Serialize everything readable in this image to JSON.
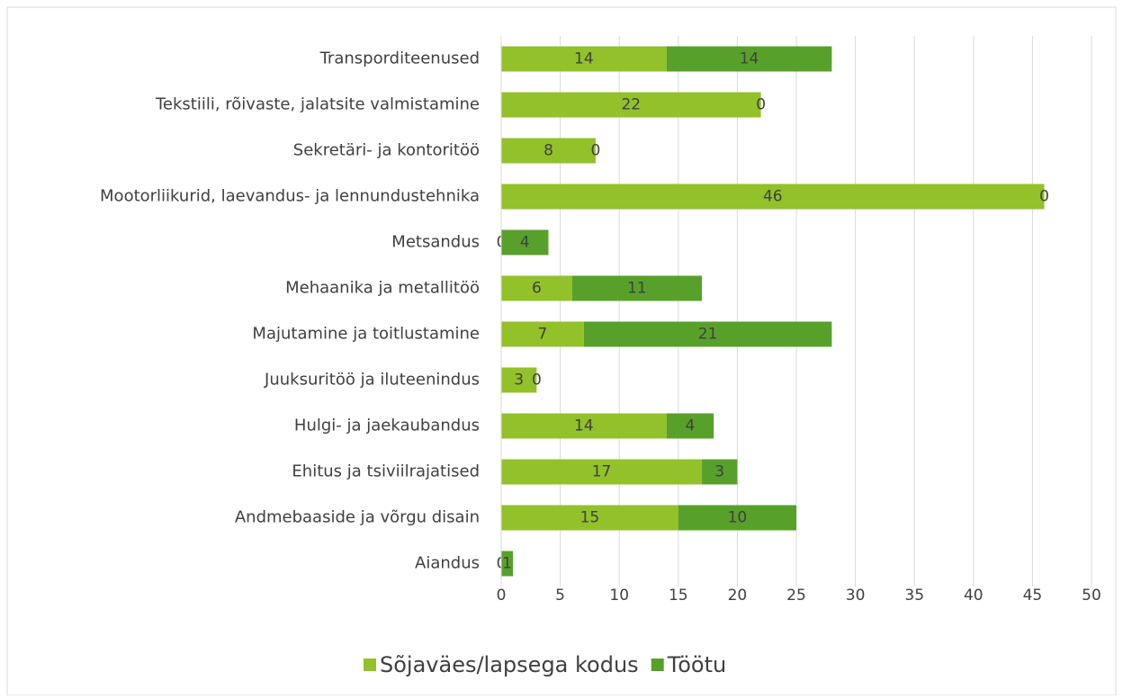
{
  "chart_data": {
    "type": "stacked_barh",
    "categories": [
      "Transporditeenused",
      "Tekstiili, rõivaste, jalatsite valmistamine",
      "Sekretäri- ja kontoritöö",
      "Mootorliikurid, laevandus- ja lennundustehnika",
      "Metsandus",
      "Mehaanika ja metallitöö",
      "Majutamine ja toitlustamine",
      "Juuksuritöö ja iluteenindus",
      "Hulgi- ja jaekaubandus",
      "Ehitus ja tsiviilrajatised",
      "Andmebaaside ja võrgu disain",
      "Aiandus"
    ],
    "series": [
      {
        "name": "Sõjaväes/lapsega kodus",
        "color": "#92c12a",
        "values": [
          14,
          22,
          8,
          46,
          0,
          6,
          7,
          3,
          14,
          17,
          15,
          0
        ]
      },
      {
        "name": "Töötu",
        "color": "#57a12b",
        "values": [
          14,
          0,
          0,
          0,
          4,
          11,
          21,
          0,
          4,
          3,
          10,
          1
        ]
      }
    ],
    "xlim": [
      0,
      50
    ],
    "xticks": [
      0,
      5,
      10,
      15,
      20,
      25,
      30,
      35,
      40,
      45,
      50
    ],
    "grid": true,
    "legend": "bottom"
  }
}
